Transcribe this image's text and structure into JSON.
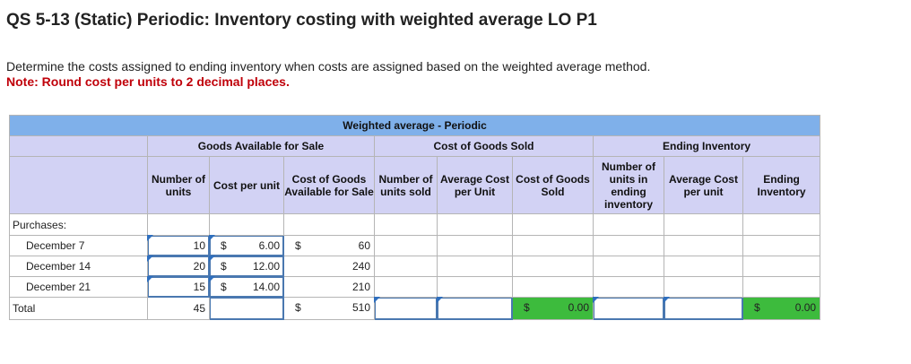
{
  "title": "QS 5-13 (Static) Periodic: Inventory costing with weighted average LO P1",
  "instruction": "Determine the costs assigned to ending inventory when costs are assigned based on the weighted average method.",
  "note": "Note: Round cost per units to 2 decimal places.",
  "table": {
    "main_header": "Weighted average - Periodic",
    "groups": {
      "available": "Goods Available for Sale",
      "sold": "Cost of Goods Sold",
      "ending": "Ending Inventory"
    },
    "columns": {
      "num_units": "Number of units",
      "cost_per_unit": "Cost per unit",
      "cost_available": "Cost of Goods Available for Sale",
      "num_sold": "Number of units sold",
      "avg_cost_sold": "Average Cost per Unit",
      "cogs": "Cost of Goods Sold",
      "num_ending": "Number of units in ending inventory",
      "avg_cost_ending": "Average Cost per unit",
      "ending_inventory": "Ending Inventory"
    },
    "purchases_label": "Purchases:",
    "currency": "$",
    "rows": [
      {
        "label": "December 7",
        "units": "10",
        "cost": "6.00",
        "total": "60"
      },
      {
        "label": "December 14",
        "units": "20",
        "cost": "12.00",
        "total": "240"
      },
      {
        "label": "December 21",
        "units": "15",
        "cost": "14.00",
        "total": "210"
      }
    ],
    "total_row": {
      "label": "Total",
      "units": "45",
      "total": "510",
      "cogs": "0.00",
      "ending_inventory": "0.00"
    }
  },
  "colors": {
    "header_blue": "#7fb0ea",
    "header_lavender": "#d2d2f4",
    "note_red": "#c0000a",
    "input_border": "#4a78b0",
    "computed_green": "#3dbb3d"
  }
}
